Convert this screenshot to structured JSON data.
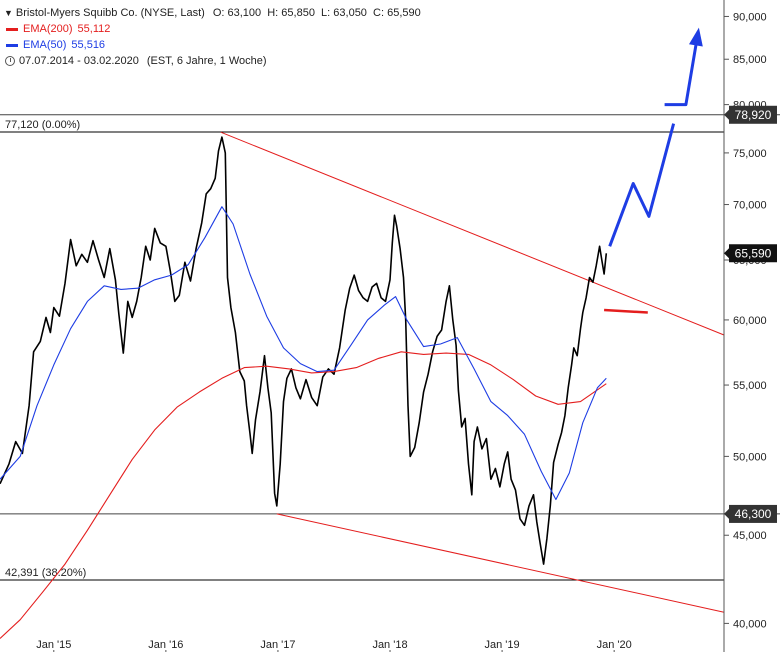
{
  "legend": {
    "title": "Bristol-Myers Squibb Co. (NYSE, Last)",
    "ohlc": "O: 63,100  H: 65,850  L: 63,050  C: 65,590",
    "ema200_label": "EMA(200)",
    "ema200_value": "55,112",
    "ema50_label": "EMA(50)",
    "ema50_value": "55,516",
    "range": "07.07.2014 - 03.02.2020",
    "range_note": "(EST, 6 Jahre, 1 Woche)",
    "colors": {
      "ema200": "#e41e1e",
      "ema50": "#1e3de4"
    }
  },
  "chart_data": {
    "type": "line",
    "scale": "log",
    "ylim": [
      38.5,
      92
    ],
    "y_ticks": [
      40,
      45,
      50,
      55,
      60,
      65,
      70,
      75,
      80,
      85,
      90
    ],
    "y_tick_labels": [
      "40,000",
      "45,000",
      "50,000",
      "55,000",
      "60,000",
      "65,000",
      "70,000",
      "75,000",
      "80,000",
      "85,000",
      "90,000"
    ],
    "x_labels": [
      "Jan '15",
      "Jan '16",
      "Jan '17",
      "Jan '18",
      "Jan '19",
      "Jan '20"
    ],
    "x_label_years": [
      2015,
      2016,
      2017,
      2018,
      2019,
      2020
    ],
    "xlim": [
      2014.52,
      2020.98
    ],
    "horizontal_levels": [
      {
        "value": 78.92,
        "label": "78,920",
        "badge": true
      },
      {
        "value": 77.12,
        "label": "77,120 (0.00%)"
      },
      {
        "value": 46.3,
        "label": "46,300",
        "badge": true
      },
      {
        "value": 42.391,
        "label": "42,391 (38.20%)"
      }
    ],
    "last_price": {
      "value": 65.59,
      "label": "65,590"
    },
    "series": [
      {
        "name": "Bristol-Myers Squibb Co.",
        "color": "#000000",
        "points": [
          [
            2014.52,
            48.2
          ],
          [
            2014.6,
            49.5
          ],
          [
            2014.66,
            51.0
          ],
          [
            2014.72,
            50.2
          ],
          [
            2014.78,
            53.5
          ],
          [
            2014.82,
            57.5
          ],
          [
            2014.88,
            58.3
          ],
          [
            2014.93,
            60.2
          ],
          [
            2014.97,
            59.0
          ],
          [
            2015.0,
            61.0
          ],
          [
            2015.05,
            60.3
          ],
          [
            2015.1,
            63.0
          ],
          [
            2015.15,
            66.8
          ],
          [
            2015.2,
            64.5
          ],
          [
            2015.25,
            65.5
          ],
          [
            2015.3,
            64.8
          ],
          [
            2015.35,
            66.7
          ],
          [
            2015.4,
            65.0
          ],
          [
            2015.45,
            63.5
          ],
          [
            2015.5,
            66.0
          ],
          [
            2015.55,
            63.3
          ],
          [
            2015.58,
            60.5
          ],
          [
            2015.62,
            57.4
          ],
          [
            2015.66,
            61.5
          ],
          [
            2015.7,
            60.2
          ],
          [
            2015.74,
            61.5
          ],
          [
            2015.78,
            63.5
          ],
          [
            2015.82,
            66.2
          ],
          [
            2015.86,
            65.0
          ],
          [
            2015.9,
            67.8
          ],
          [
            2015.95,
            66.5
          ],
          [
            2016.0,
            66.2
          ],
          [
            2016.04,
            64.0
          ],
          [
            2016.08,
            61.5
          ],
          [
            2016.12,
            62.0
          ],
          [
            2016.17,
            64.8
          ],
          [
            2016.22,
            63.2
          ],
          [
            2016.27,
            66.0
          ],
          [
            2016.32,
            68.3
          ],
          [
            2016.36,
            71.0
          ],
          [
            2016.4,
            71.5
          ],
          [
            2016.44,
            72.5
          ],
          [
            2016.47,
            75.2
          ],
          [
            2016.5,
            76.6
          ],
          [
            2016.53,
            75.0
          ],
          [
            2016.55,
            63.5
          ],
          [
            2016.58,
            61.0
          ],
          [
            2016.62,
            59.0
          ],
          [
            2016.66,
            56.0
          ],
          [
            2016.7,
            55.3
          ],
          [
            2016.72,
            53.5
          ],
          [
            2016.75,
            51.6
          ],
          [
            2016.77,
            50.2
          ],
          [
            2016.8,
            52.5
          ],
          [
            2016.84,
            54.5
          ],
          [
            2016.88,
            57.2
          ],
          [
            2016.91,
            54.8
          ],
          [
            2016.94,
            53.0
          ],
          [
            2016.97,
            47.6
          ],
          [
            2016.99,
            46.8
          ],
          [
            2017.02,
            49.5
          ],
          [
            2017.05,
            53.8
          ],
          [
            2017.08,
            55.5
          ],
          [
            2017.12,
            56.2
          ],
          [
            2017.16,
            54.8
          ],
          [
            2017.2,
            54.0
          ],
          [
            2017.25,
            55.4
          ],
          [
            2017.3,
            54.1
          ],
          [
            2017.35,
            53.5
          ],
          [
            2017.4,
            55.6
          ],
          [
            2017.45,
            56.2
          ],
          [
            2017.5,
            55.8
          ],
          [
            2017.55,
            57.8
          ],
          [
            2017.6,
            60.8
          ],
          [
            2017.64,
            62.6
          ],
          [
            2017.68,
            63.7
          ],
          [
            2017.72,
            62.4
          ],
          [
            2017.76,
            61.8
          ],
          [
            2017.8,
            61.5
          ],
          [
            2017.84,
            62.7
          ],
          [
            2017.88,
            63.0
          ],
          [
            2017.92,
            61.8
          ],
          [
            2017.96,
            61.5
          ],
          [
            2018.0,
            63.3
          ],
          [
            2018.02,
            66.5
          ],
          [
            2018.04,
            69.0
          ],
          [
            2018.06,
            68.0
          ],
          [
            2018.09,
            66.0
          ],
          [
            2018.12,
            63.5
          ],
          [
            2018.14,
            60.0
          ],
          [
            2018.16,
            53.5
          ],
          [
            2018.18,
            50.0
          ],
          [
            2018.22,
            50.6
          ],
          [
            2018.26,
            52.3
          ],
          [
            2018.3,
            54.5
          ],
          [
            2018.34,
            55.8
          ],
          [
            2018.38,
            57.5
          ],
          [
            2018.42,
            58.7
          ],
          [
            2018.46,
            59.2
          ],
          [
            2018.5,
            61.5
          ],
          [
            2018.53,
            62.8
          ],
          [
            2018.56,
            60.0
          ],
          [
            2018.59,
            58.0
          ],
          [
            2018.61,
            54.6
          ],
          [
            2018.64,
            52.0
          ],
          [
            2018.67,
            52.6
          ],
          [
            2018.7,
            49.5
          ],
          [
            2018.73,
            47.5
          ],
          [
            2018.75,
            51.0
          ],
          [
            2018.78,
            52.0
          ],
          [
            2018.82,
            50.5
          ],
          [
            2018.86,
            51.2
          ],
          [
            2018.9,
            48.5
          ],
          [
            2018.94,
            49.2
          ],
          [
            2018.98,
            48.0
          ],
          [
            2019.02,
            49.5
          ],
          [
            2019.05,
            50.3
          ],
          [
            2019.08,
            48.5
          ],
          [
            2019.12,
            47.8
          ],
          [
            2019.16,
            46.0
          ],
          [
            2019.2,
            45.6
          ],
          [
            2019.24,
            46.8
          ],
          [
            2019.28,
            47.5
          ],
          [
            2019.31,
            45.8
          ],
          [
            2019.34,
            44.5
          ],
          [
            2019.37,
            43.3
          ],
          [
            2019.4,
            44.8
          ],
          [
            2019.43,
            46.8
          ],
          [
            2019.46,
            49.6
          ],
          [
            2019.5,
            50.8
          ],
          [
            2019.53,
            51.6
          ],
          [
            2019.56,
            52.8
          ],
          [
            2019.59,
            54.8
          ],
          [
            2019.62,
            56.5
          ],
          [
            2019.64,
            57.8
          ],
          [
            2019.67,
            57.2
          ],
          [
            2019.7,
            59.3
          ],
          [
            2019.72,
            60.6
          ],
          [
            2019.75,
            61.8
          ],
          [
            2019.78,
            63.5
          ],
          [
            2019.81,
            63.1
          ],
          [
            2019.84,
            64.5
          ],
          [
            2019.87,
            66.2
          ],
          [
            2019.89,
            65.0
          ],
          [
            2019.91,
            63.8
          ],
          [
            2019.93,
            65.59
          ]
        ]
      },
      {
        "name": "EMA(200)",
        "color": "#e41e1e",
        "points": [
          [
            2014.52,
            39.2
          ],
          [
            2014.7,
            40.2
          ],
          [
            2014.9,
            41.7
          ],
          [
            2015.1,
            43.3
          ],
          [
            2015.3,
            45.3
          ],
          [
            2015.5,
            47.5
          ],
          [
            2015.7,
            49.8
          ],
          [
            2015.9,
            51.8
          ],
          [
            2016.1,
            53.4
          ],
          [
            2016.3,
            54.5
          ],
          [
            2016.5,
            55.5
          ],
          [
            2016.7,
            56.3
          ],
          [
            2016.9,
            56.4
          ],
          [
            2017.1,
            56.2
          ],
          [
            2017.3,
            55.9
          ],
          [
            2017.5,
            56.0
          ],
          [
            2017.7,
            56.3
          ],
          [
            2017.9,
            57.0
          ],
          [
            2018.1,
            57.5
          ],
          [
            2018.3,
            57.3
          ],
          [
            2018.5,
            57.4
          ],
          [
            2018.7,
            57.3
          ],
          [
            2018.9,
            56.5
          ],
          [
            2019.1,
            55.4
          ],
          [
            2019.3,
            54.2
          ],
          [
            2019.5,
            53.6
          ],
          [
            2019.7,
            53.8
          ],
          [
            2019.93,
            55.1
          ]
        ]
      },
      {
        "name": "EMA(50)",
        "color": "#1e3de4",
        "points": [
          [
            2014.52,
            48.5
          ],
          [
            2014.7,
            50.0
          ],
          [
            2014.85,
            53.5
          ],
          [
            2015.0,
            56.5
          ],
          [
            2015.15,
            59.3
          ],
          [
            2015.3,
            61.5
          ],
          [
            2015.45,
            62.8
          ],
          [
            2015.6,
            62.5
          ],
          [
            2015.75,
            62.6
          ],
          [
            2015.9,
            63.3
          ],
          [
            2016.05,
            63.7
          ],
          [
            2016.2,
            64.6
          ],
          [
            2016.35,
            67.0
          ],
          [
            2016.5,
            69.8
          ],
          [
            2016.6,
            68.2
          ],
          [
            2016.75,
            63.8
          ],
          [
            2016.9,
            60.3
          ],
          [
            2017.05,
            57.8
          ],
          [
            2017.2,
            56.6
          ],
          [
            2017.35,
            56.0
          ],
          [
            2017.5,
            56.1
          ],
          [
            2017.65,
            58.0
          ],
          [
            2017.8,
            60.0
          ],
          [
            2017.95,
            61.2
          ],
          [
            2018.05,
            61.9
          ],
          [
            2018.15,
            60.0
          ],
          [
            2018.3,
            57.9
          ],
          [
            2018.45,
            58.1
          ],
          [
            2018.6,
            58.6
          ],
          [
            2018.75,
            56.2
          ],
          [
            2018.9,
            53.8
          ],
          [
            2019.05,
            52.8
          ],
          [
            2019.2,
            51.5
          ],
          [
            2019.35,
            49.0
          ],
          [
            2019.48,
            47.2
          ],
          [
            2019.6,
            48.9
          ],
          [
            2019.72,
            52.3
          ],
          [
            2019.85,
            54.8
          ],
          [
            2019.93,
            55.5
          ]
        ]
      }
    ],
    "trendlines": [
      {
        "color": "#e41e1e",
        "points": [
          [
            2016.49,
            77.1
          ],
          [
            2020.98,
            58.8
          ]
        ]
      },
      {
        "color": "#e41e1e",
        "points": [
          [
            2016.99,
            46.3
          ],
          [
            2020.98,
            40.6
          ]
        ]
      },
      {
        "color": "#e41e1e",
        "points": [
          [
            2019.91,
            60.8
          ],
          [
            2020.3,
            60.6
          ]
        ]
      }
    ],
    "projection": {
      "color": "#1e3de4",
      "points": [
        [
          2019.96,
          66.2
        ],
        [
          2020.17,
          72.0
        ],
        [
          2020.31,
          68.9
        ],
        [
          2020.53,
          78.0
        ]
      ],
      "arrow_points": [
        [
          2020.45,
          80.0
        ],
        [
          2020.64,
          80.0
        ],
        [
          2020.75,
          88.2
        ]
      ]
    }
  }
}
